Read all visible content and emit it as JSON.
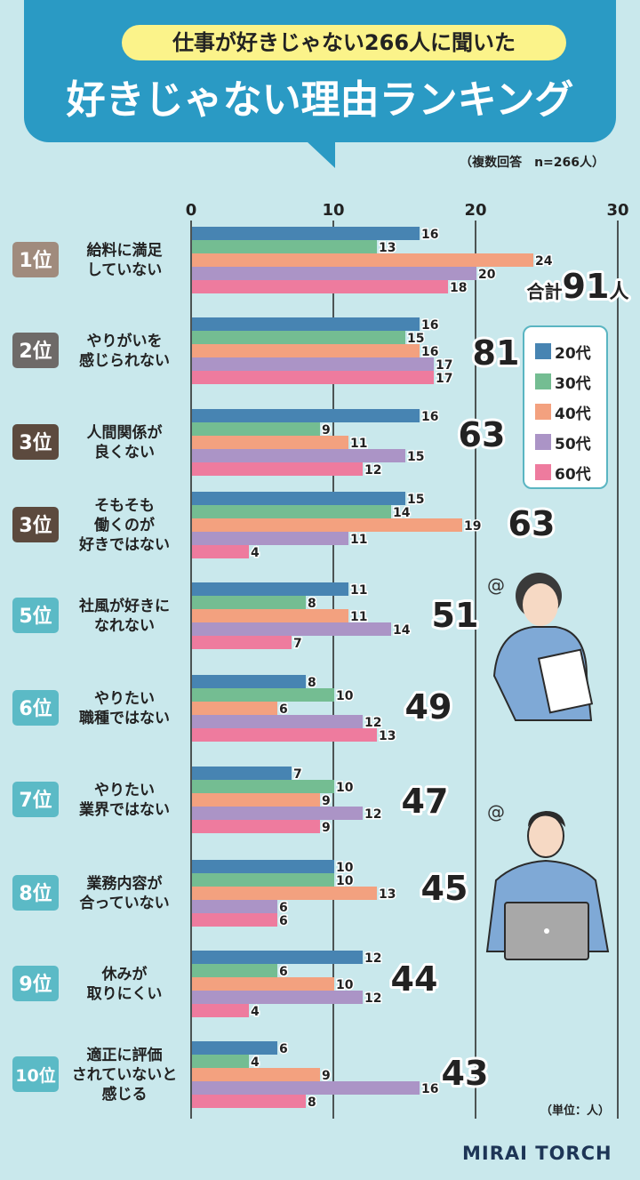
{
  "header": {
    "subtitle": "仕事が好きじゃない266人に聞いた",
    "title": "好きじゃない理由ランキング"
  },
  "note": "（複数回答　n=266人）",
  "unit": "（単位：人）",
  "logo": "MIRAI TORCH",
  "colors": {
    "header": "#2a9ac4",
    "rank_top1": "#a08b7d",
    "rank_2": "#6e6a68",
    "rank_3": "#5c4a3e",
    "rank_other": "#5bbac6"
  },
  "chart_data": {
    "type": "bar",
    "orientation": "horizontal",
    "xlim": [
      0,
      30
    ],
    "xticks": [
      0,
      10,
      20,
      30
    ],
    "grid": true,
    "legend_placement": "right",
    "series_names": [
      "20代",
      "30代",
      "40代",
      "50代",
      "60代"
    ],
    "series_colors": [
      "#4784b2",
      "#74bd92",
      "#f3a17f",
      "#ab94c6",
      "#ee7b9e"
    ],
    "total_prefix": "合計",
    "total_suffix": "人",
    "categories": [
      {
        "rank": "1位",
        "label": [
          "給料に満足",
          "していない"
        ],
        "values": [
          16,
          13,
          24,
          20,
          18
        ],
        "total": 91
      },
      {
        "rank": "2位",
        "label": [
          "やりがいを",
          "感じられない"
        ],
        "values": [
          16,
          15,
          16,
          17,
          17
        ],
        "total": 81
      },
      {
        "rank": "3位",
        "label": [
          "人間関係が",
          "良くない"
        ],
        "values": [
          16,
          9,
          11,
          15,
          12
        ],
        "total": 63
      },
      {
        "rank": "3位",
        "label": [
          "そもそも",
          "働くのが",
          "好きではない"
        ],
        "values": [
          15,
          14,
          19,
          11,
          4
        ],
        "total": 63
      },
      {
        "rank": "5位",
        "label": [
          "社風が好きに",
          "なれない"
        ],
        "values": [
          11,
          8,
          11,
          14,
          7
        ],
        "total": 51
      },
      {
        "rank": "6位",
        "label": [
          "やりたい",
          "職種ではない"
        ],
        "values": [
          8,
          10,
          6,
          12,
          13
        ],
        "total": 49
      },
      {
        "rank": "7位",
        "label": [
          "やりたい",
          "業界ではない"
        ],
        "values": [
          7,
          10,
          9,
          12,
          9
        ],
        "total": 47
      },
      {
        "rank": "8位",
        "label": [
          "業務内容が",
          "合っていない"
        ],
        "values": [
          10,
          10,
          13,
          6,
          6
        ],
        "total": 45
      },
      {
        "rank": "9位",
        "label": [
          "休みが",
          "取りにくい"
        ],
        "values": [
          12,
          6,
          10,
          12,
          4
        ],
        "total": 44
      },
      {
        "rank": "10位",
        "label": [
          "適正に評価",
          "されていないと",
          "感じる"
        ],
        "values": [
          6,
          4,
          9,
          16,
          8
        ],
        "total": 43
      }
    ]
  }
}
